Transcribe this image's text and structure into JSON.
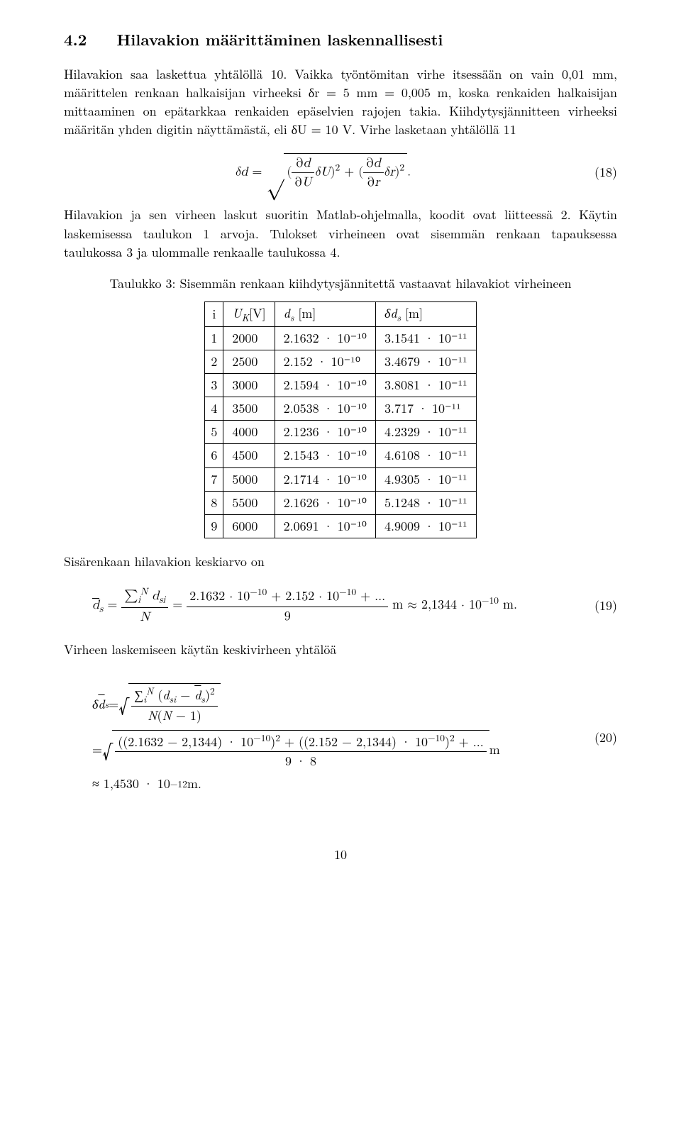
{
  "section": {
    "number": "4.2",
    "title": "Hilavakion määrittäminen laskennallisesti"
  },
  "para1": "Hilavakion saa laskettua yhtälöllä 10. Vaikka työntömitan virhe itsessään on vain 0,01 mm, määrittelen renkaan halkaisijan virheeksi δr = 5 mm = 0,005 m, koska renkaiden halkaisijan mittaaminen on epätarkkaa renkaiden epäselvien rajojen takia. Kiihdytysjännitteen virheeksi määritän yhden digitin näyttämästä, eli δU = 10 V. Virhe lasketaan yhtälöllä 11",
  "eq18": {
    "formula_html": "<i>δd</i> = <span class='sqrt-sign'>√</span><span class='sqrt'>(<span class='frac'><span class='num'>∂<i>d</i></span><span class='den'>∂<i>U</i></span></span><i>δU</i>)<sup>2</sup> + (<span class='frac'><span class='num'>∂<i>d</i></span><span class='den'>∂<i>r</i></span></span><i>δr</i>)<sup>2</sup></span>.",
    "number": "(18)"
  },
  "para2": "Hilavakion ja sen virheen laskut suoritin Matlab-ohjelmalla, koodit ovat liitteessä 2. Käytin laskemisessa taulukon 1 arvoja. Tulokset virheineen ovat sisemmän renkaan tapauksessa taulukossa 3 ja ulommalle renkaalle taulukossa 4.",
  "table3": {
    "caption": "Taulukko 3: Sisemmän renkaan kiihdytysjännitettä vastaavat hilavakiot virheineen",
    "columns": [
      "i",
      "U_K [V]",
      "d_s [m]",
      "δd_s [m]"
    ],
    "rows": [
      [
        "1",
        "2000",
        "2.1632 · 10⁻¹⁰",
        "3.1541 · 10⁻¹¹"
      ],
      [
        "2",
        "2500",
        "2.152 · 10⁻¹⁰",
        "3.4679 · 10⁻¹¹"
      ],
      [
        "3",
        "3000",
        "2.1594 · 10⁻¹⁰",
        "3.8081 · 10⁻¹¹"
      ],
      [
        "4",
        "3500",
        "2.0538 · 10⁻¹⁰",
        "3.717 · 10⁻¹¹"
      ],
      [
        "5",
        "4000",
        "2.1236 · 10⁻¹⁰",
        "4.2329 · 10⁻¹¹"
      ],
      [
        "6",
        "4500",
        "2.1543 · 10⁻¹⁰",
        "4.6108 · 10⁻¹¹"
      ],
      [
        "7",
        "5000",
        "2.1714 · 10⁻¹⁰",
        "4.9305 · 10⁻¹¹"
      ],
      [
        "8",
        "5500",
        "2.1626 · 10⁻¹⁰",
        "5.1248 · 10⁻¹¹"
      ],
      [
        "9",
        "6000",
        "2.0691 · 10⁻¹⁰",
        "4.9009 · 10⁻¹¹"
      ]
    ]
  },
  "para3": "Sisärenkaan hilavakion keskiarvo on",
  "eq19": {
    "formula_html": "<span class='over'><i>d</i></span><sub><i>s</i></sub> = <span class='frac'><span class='num'>∑<sub><i>i</i></sub><sup><i>N</i></sup> <i>d</i><sub><i>si</i></sub></span><span class='den'><i>N</i></span></span> = <span class='frac'><span class='num'>2.1632 · 10<sup>−10</sup> + 2.152 · 10<sup>−10</sup> + ...</span><span class='den'>9</span></span> m ≈ 2,1344 · 10<sup>−10</sup> m.",
    "number": "(19)"
  },
  "para4": "Virheen laskemiseen käytän keskivirheen yhtälöä",
  "eq20": {
    "line1_html": "<i>δ</i><span class='over'><i>d</i></span><sub><i>s</i></sub> = <span class='sqrt-sign'>√</span><span class='sqrt'><span class='frac'><span class='num'>∑<sub><i>i</i></sub><sup><i>N</i></sup> (<i>d</i><sub><i>si</i></sub> − <span class='over'><i>d</i></span><sub><i>s</i></sub>)<sup>2</sup></span><span class='den'><i>N</i>(<i>N</i> − 1)</span></span></span>",
    "line2_html": "= <span class='sqrt-sign'>√</span><span class='sqrt'><span class='frac'><span class='num'>((2.1632 − 2,1344) · 10<sup>−10</sup>)<sup>2</sup> + ((2.152 − 2,1344) · 10<sup>−10</sup>)<sup>2</sup> + ...</span><span class='den'>9 · 8</span></span></span> m",
    "line3_html": "≈ 1,4530 · 10<sup>−12</sup> m.",
    "number": "(20)"
  },
  "page_number": "10"
}
